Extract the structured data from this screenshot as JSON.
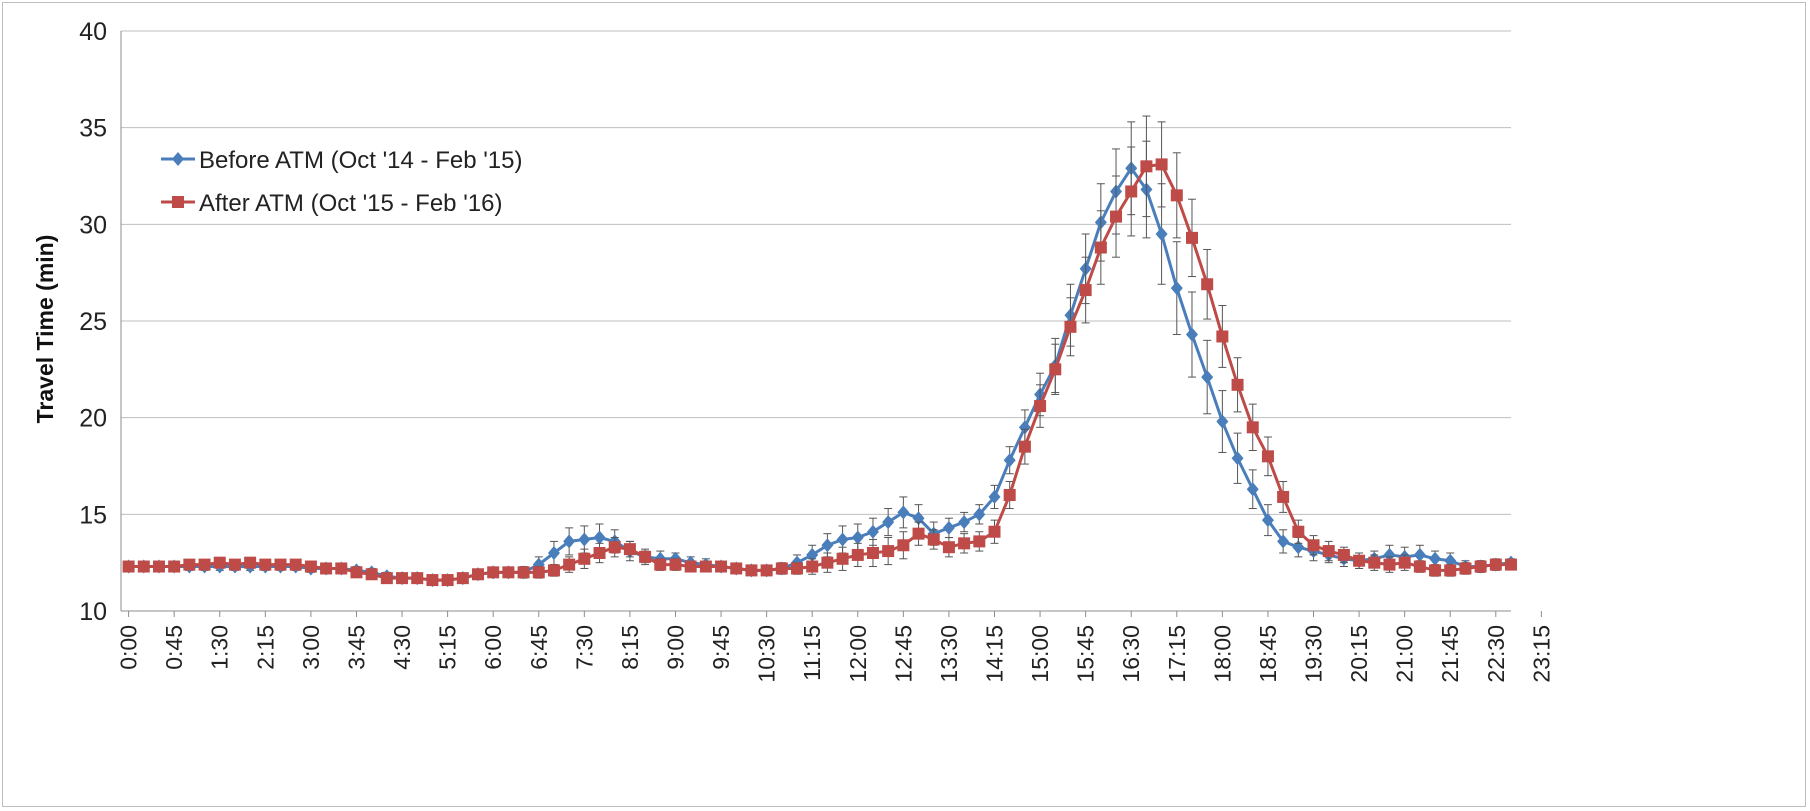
{
  "chart_data": {
    "type": "line",
    "title": "",
    "xlabel": "",
    "ylabel": "Travel Time (min)",
    "ylim": [
      10,
      40
    ],
    "yticks": [
      10,
      15,
      20,
      25,
      30,
      35,
      40
    ],
    "grid": "horizontal",
    "legend_position": "top-left",
    "xtick_labels": [
      "0:00",
      "0:45",
      "1:30",
      "2:15",
      "3:00",
      "3:45",
      "4:30",
      "5:15",
      "6:00",
      "6:45",
      "7:30",
      "8:15",
      "9:00",
      "9:45",
      "10:30",
      "11:15",
      "12:00",
      "12:45",
      "13:30",
      "14:15",
      "15:00",
      "15:45",
      "16:30",
      "17:15",
      "18:00",
      "18:45",
      "19:30",
      "20:15",
      "21:00",
      "21:45",
      "22:30",
      "23:15"
    ],
    "x_interval_minutes": 15,
    "series": [
      {
        "name": "Before ATM (Oct '14 - Feb '15)",
        "color": "#4a7ebb",
        "marker": "diamond",
        "values": [
          12.3,
          12.3,
          12.3,
          12.3,
          12.3,
          12.3,
          12.3,
          12.3,
          12.3,
          12.3,
          12.3,
          12.3,
          12.2,
          12.2,
          12.2,
          12.1,
          12.0,
          11.8,
          11.7,
          11.7,
          11.6,
          11.6,
          11.7,
          11.9,
          12.0,
          12.0,
          12.0,
          12.4,
          13.0,
          13.6,
          13.7,
          13.8,
          13.6,
          13.1,
          12.8,
          12.7,
          12.7,
          12.5,
          12.4,
          12.3,
          12.2,
          12.1,
          12.1,
          12.2,
          12.5,
          12.9,
          13.4,
          13.7,
          13.8,
          14.1,
          14.6,
          15.1,
          14.8,
          14.0,
          14.3,
          14.6,
          15.0,
          15.9,
          17.8,
          19.5,
          21.2,
          22.7,
          25.3,
          27.7,
          30.1,
          31.7,
          32.9,
          31.8,
          29.5,
          26.7,
          24.3,
          22.1,
          19.8,
          17.9,
          16.3,
          14.7,
          13.6,
          13.3,
          13.1,
          12.9,
          12.7,
          12.6,
          12.7,
          12.9,
          12.8,
          12.9,
          12.7,
          12.6,
          12.3,
          12.3,
          12.4,
          12.5
        ],
        "error": [
          0.2,
          0.2,
          0.2,
          0.2,
          0.2,
          0.2,
          0.2,
          0.2,
          0.2,
          0.2,
          0.2,
          0.2,
          0.2,
          0.2,
          0.2,
          0.2,
          0.2,
          0.2,
          0.2,
          0.2,
          0.2,
          0.2,
          0.2,
          0.2,
          0.2,
          0.2,
          0.3,
          0.4,
          0.6,
          0.7,
          0.7,
          0.7,
          0.6,
          0.5,
          0.4,
          0.4,
          0.3,
          0.3,
          0.3,
          0.2,
          0.2,
          0.2,
          0.2,
          0.3,
          0.4,
          0.5,
          0.6,
          0.7,
          0.7,
          0.7,
          0.7,
          0.8,
          0.7,
          0.6,
          0.5,
          0.5,
          0.5,
          0.6,
          0.7,
          0.9,
          1.1,
          1.4,
          1.6,
          1.8,
          2.0,
          2.2,
          2.4,
          2.5,
          2.6,
          2.4,
          2.2,
          1.9,
          1.6,
          1.3,
          1.0,
          0.8,
          0.6,
          0.5,
          0.5,
          0.4,
          0.4,
          0.4,
          0.4,
          0.5,
          0.5,
          0.5,
          0.4,
          0.4,
          0.3,
          0.3,
          0.3,
          0.2
        ]
      },
      {
        "name": "After ATM (Oct '15 - Feb '16)",
        "color": "#be4b48",
        "marker": "square",
        "values": [
          12.3,
          12.3,
          12.3,
          12.3,
          12.4,
          12.4,
          12.5,
          12.4,
          12.5,
          12.4,
          12.4,
          12.4,
          12.3,
          12.2,
          12.2,
          12.0,
          11.9,
          11.7,
          11.7,
          11.7,
          11.6,
          11.6,
          11.7,
          11.9,
          12.0,
          12.0,
          12.0,
          12.0,
          12.1,
          12.4,
          12.7,
          13.0,
          13.3,
          13.2,
          12.8,
          12.4,
          12.4,
          12.3,
          12.3,
          12.3,
          12.2,
          12.1,
          12.1,
          12.2,
          12.2,
          12.3,
          12.5,
          12.7,
          12.9,
          13.0,
          13.1,
          13.4,
          14.0,
          13.7,
          13.3,
          13.5,
          13.6,
          14.1,
          16.0,
          18.5,
          20.6,
          22.5,
          24.7,
          26.6,
          28.8,
          30.4,
          31.7,
          33.0,
          33.1,
          31.5,
          29.3,
          26.9,
          24.2,
          21.7,
          19.5,
          18.0,
          15.9,
          14.1,
          13.4,
          13.1,
          12.9,
          12.6,
          12.5,
          12.4,
          12.5,
          12.3,
          12.1,
          12.1,
          12.2,
          12.3,
          12.4,
          12.4
        ],
        "error": [
          0.2,
          0.2,
          0.2,
          0.2,
          0.2,
          0.2,
          0.2,
          0.2,
          0.2,
          0.2,
          0.2,
          0.2,
          0.2,
          0.2,
          0.2,
          0.2,
          0.2,
          0.2,
          0.2,
          0.2,
          0.2,
          0.2,
          0.2,
          0.2,
          0.2,
          0.2,
          0.2,
          0.3,
          0.3,
          0.4,
          0.5,
          0.5,
          0.5,
          0.4,
          0.3,
          0.3,
          0.3,
          0.2,
          0.2,
          0.2,
          0.2,
          0.2,
          0.2,
          0.2,
          0.3,
          0.4,
          0.5,
          0.6,
          0.6,
          0.7,
          0.7,
          0.7,
          0.6,
          0.5,
          0.5,
          0.5,
          0.5,
          0.6,
          0.7,
          0.9,
          1.1,
          1.3,
          1.5,
          1.7,
          1.9,
          2.1,
          2.3,
          2.6,
          2.2,
          2.2,
          2.0,
          1.8,
          1.6,
          1.4,
          1.2,
          1.0,
          0.8,
          0.6,
          0.5,
          0.5,
          0.4,
          0.4,
          0.4,
          0.4,
          0.4,
          0.3,
          0.3,
          0.3,
          0.3,
          0.3,
          0.2,
          0.2
        ]
      }
    ]
  }
}
